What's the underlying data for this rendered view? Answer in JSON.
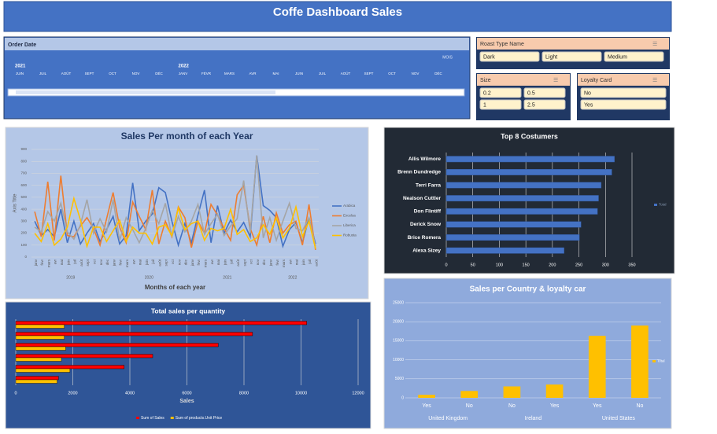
{
  "title": "Coffe Dashboard Sales",
  "timeline": {
    "header": "Order Date",
    "unit": "MOIS",
    "years": [
      {
        "name": "2021",
        "months": [
          "JUIN",
          "JUIL",
          "AOÛT",
          "SEPT",
          "OCT",
          "NOV",
          "DÉC"
        ]
      },
      {
        "name": "2022",
        "months": [
          "JANV",
          "FÉVR",
          "MARS",
          "AVR",
          "MAI",
          "JUIN",
          "JUIL",
          "AOÛT",
          "SEPT",
          "OCT",
          "NOV",
          "DÉC"
        ]
      }
    ]
  },
  "slicers": [
    {
      "header": "Roast Type Name",
      "items": [
        "Dark",
        "Light",
        "Medium"
      ]
    },
    {
      "header": "Size",
      "items": [
        "0.2",
        "0.5",
        "1",
        "2.5"
      ]
    },
    {
      "header": "Loyalty Card",
      "items": [
        "No",
        "Yes"
      ]
    }
  ],
  "chart_data": [
    {
      "type": "line",
      "title": "Sales Per month of each Year",
      "y_label": "Axis Title",
      "x_label": "Months of each year",
      "groups": [
        {
          "name": "2019",
          "categories": [
            "janv",
            "févr",
            "mars",
            "avr",
            "mai",
            "juin",
            "juil",
            "août",
            "sept",
            "oct",
            "nov",
            "déc"
          ]
        },
        {
          "name": "2020",
          "categories": [
            "janv",
            "févr",
            "mars",
            "avr",
            "mai",
            "juin",
            "juil",
            "août",
            "sept",
            "oct",
            "nov",
            "déc"
          ]
        },
        {
          "name": "2021",
          "categories": [
            "janv",
            "févr",
            "mars",
            "avr",
            "mai",
            "juin",
            "juil",
            "août",
            "sept",
            "oct",
            "nov",
            "déc"
          ]
        },
        {
          "name": "2022",
          "categories": [
            "janv",
            "févr",
            "mars",
            "avr",
            "mai",
            "juin",
            "juil",
            "août"
          ]
        }
      ],
      "series": [
        {
          "name": "Arabica",
          "color": "#4472c4",
          "values": [
            300,
            180,
            230,
            170,
            400,
            120,
            300,
            110,
            200,
            280,
            130,
            230,
            340,
            110,
            180,
            620,
            220,
            300,
            360,
            580,
            540,
            300,
            100,
            280,
            120,
            350,
            560,
            120,
            430,
            200,
            310,
            210,
            290,
            170,
            850,
            430,
            390,
            330,
            90,
            230,
            290,
            120,
            330,
            110
          ]
        },
        {
          "name": "Excelsa",
          "color": "#ed7d31",
          "values": [
            380,
            170,
            630,
            140,
            680,
            180,
            170,
            260,
            330,
            240,
            100,
            320,
            540,
            250,
            120,
            460,
            340,
            230,
            560,
            110,
            300,
            170,
            420,
            330,
            80,
            300,
            200,
            440,
            350,
            240,
            140,
            520,
            600,
            240,
            100,
            340,
            120,
            370,
            200,
            270,
            300,
            100,
            440,
            60
          ]
        },
        {
          "name": "Liberica",
          "color": "#a5a5a5",
          "values": [
            250,
            210,
            380,
            300,
            450,
            210,
            150,
            270,
            480,
            200,
            320,
            210,
            480,
            140,
            330,
            230,
            120,
            240,
            390,
            280,
            450,
            170,
            340,
            210,
            300,
            440,
            190,
            280,
            360,
            180,
            260,
            320,
            640,
            200,
            850,
            160,
            330,
            140,
            300,
            450,
            240,
            220,
            330,
            90
          ]
        },
        {
          "name": "Robusta",
          "color": "#ffc000",
          "values": [
            200,
            130,
            280,
            100,
            150,
            250,
            490,
            310,
            90,
            250,
            250,
            130,
            220,
            310,
            130,
            250,
            200,
            200,
            110,
            250,
            270,
            180,
            410,
            230,
            280,
            300,
            140,
            240,
            220,
            240,
            400,
            190,
            230,
            130,
            160,
            270,
            190,
            330,
            160,
            240,
            420,
            170,
            300,
            70
          ]
        }
      ],
      "ylim": [
        0,
        900
      ],
      "yticks": [
        0,
        100,
        200,
        300,
        400,
        500,
        600,
        700,
        800,
        900
      ],
      "grid": true,
      "legend": "right"
    },
    {
      "type": "bar",
      "orientation": "horizontal",
      "title": "Top 8 Costumers",
      "categories": [
        "Allis Wilmore",
        "Brenn Dundredge",
        "Terri Farra",
        "Nealson Cuttler",
        "Don Flintiff",
        "Derick Snow",
        "Brice Romera",
        "Alexa Sizey"
      ],
      "series": [
        {
          "name": "Total",
          "color": "#4472c4",
          "values": [
            317,
            312,
            292,
            287,
            285,
            254,
            251,
            222
          ]
        }
      ],
      "xlim": [
        0,
        350
      ],
      "xticks": [
        0,
        50,
        100,
        150,
        200,
        250,
        300,
        350
      ],
      "grid": true,
      "legend": "right"
    },
    {
      "type": "bar",
      "orientation": "horizontal",
      "title": "Total sales  per quantity",
      "x_label": "Sales",
      "categories": [
        null,
        null,
        null,
        null,
        null,
        null
      ],
      "series": [
        {
          "name": "Sum of Sales",
          "color": "#ff0000",
          "values": [
            10200,
            8300,
            7100,
            4800,
            3800,
            1500
          ]
        },
        {
          "name": "Sum of products.Unit Price",
          "color": "#ffc000",
          "values": [
            1700,
            1700,
            1750,
            1600,
            1900,
            1450
          ]
        }
      ],
      "xlim": [
        0,
        12000
      ],
      "xticks": [
        0,
        2000,
        4000,
        6000,
        8000,
        10000,
        12000
      ],
      "grid": true,
      "legend": "bottom"
    },
    {
      "type": "column",
      "title": "Sales per Country & loyalty car",
      "groups": [
        {
          "name": "United Kingdom",
          "categories": [
            "Yes",
            "No"
          ]
        },
        {
          "name": "Ireland",
          "categories": [
            "No",
            "Yes"
          ]
        },
        {
          "name": "United States",
          "categories": [
            "Yes",
            "No"
          ]
        }
      ],
      "series": [
        {
          "name": "Total",
          "color": "#ffc000",
          "values": [
            800,
            1800,
            3000,
            3500,
            16300,
            19000
          ]
        }
      ],
      "ylim": [
        0,
        25000
      ],
      "yticks": [
        0,
        5000,
        10000,
        15000,
        20000,
        25000
      ],
      "grid": true,
      "legend": "right"
    }
  ]
}
